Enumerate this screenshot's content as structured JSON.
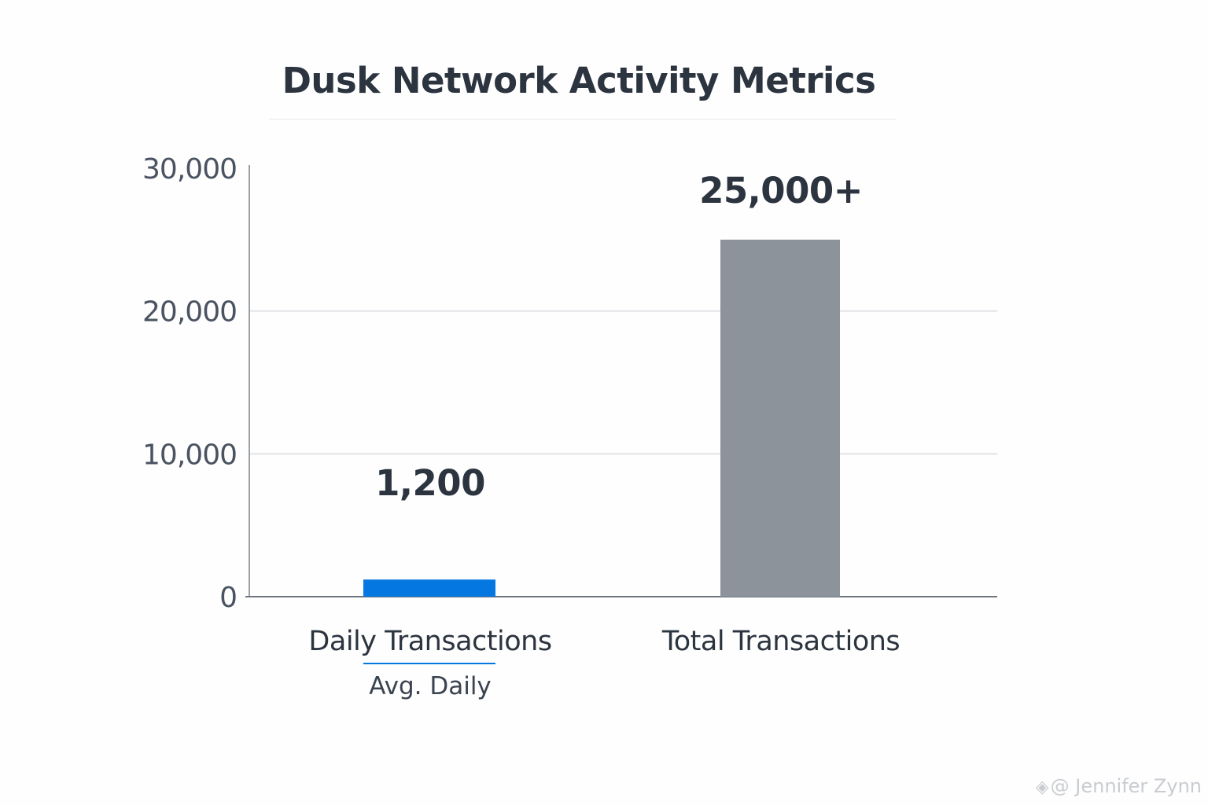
{
  "chart_data": {
    "type": "bar",
    "title": "Dusk Network Activity Metrics",
    "categories": [
      "Daily Transactions",
      "Total Transactions"
    ],
    "values": [
      1200,
      25000
    ],
    "value_labels": [
      "1,200",
      "25,000+"
    ],
    "category_sublabels": [
      "Avg. Daily",
      ""
    ],
    "bar_colors": [
      "#0478e0",
      "#8c939b"
    ],
    "ylim": [
      0,
      30000
    ],
    "yticks": [
      0,
      10000,
      20000,
      30000
    ],
    "ytick_labels": [
      "0",
      "10,000",
      "20,000",
      "30,000"
    ],
    "grid": true,
    "xlabel": "",
    "ylabel": ""
  },
  "watermark": {
    "icon": "diamond-logo-icon",
    "text": "@ Jennifer Zynn"
  }
}
